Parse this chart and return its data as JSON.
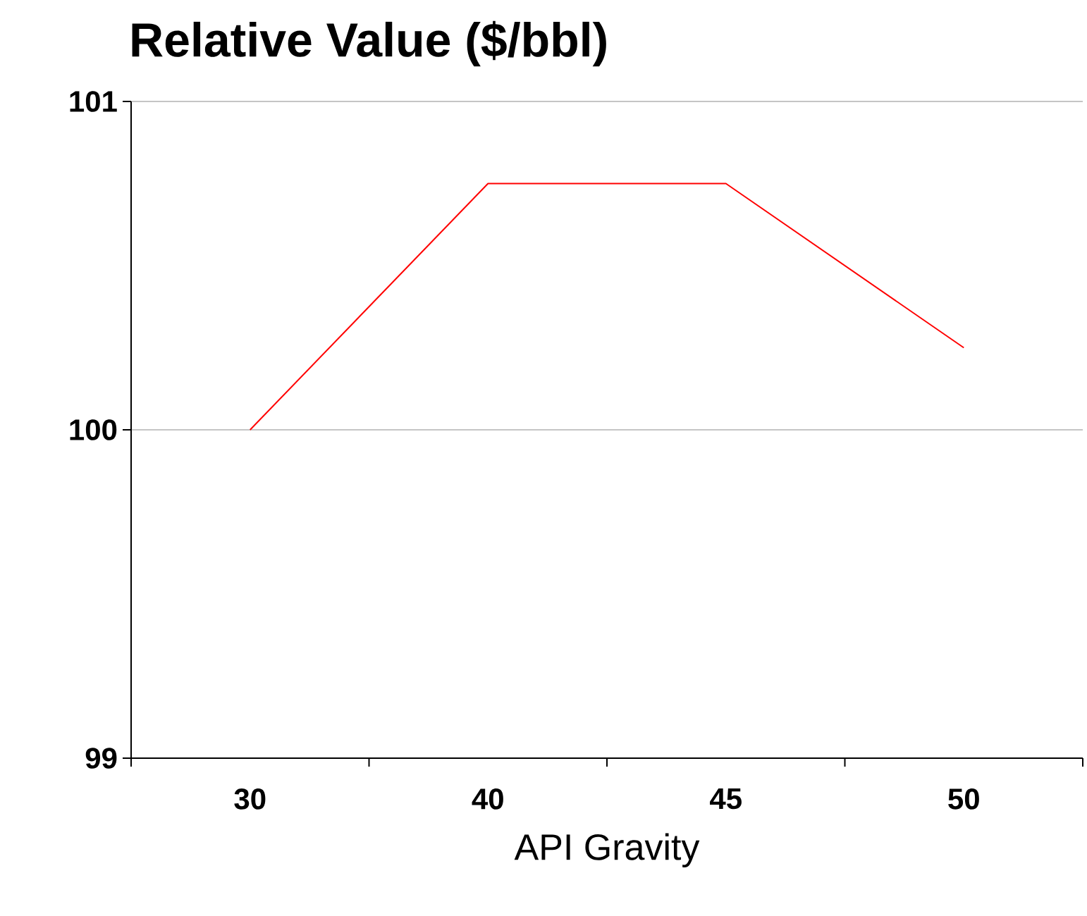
{
  "chart_data": {
    "type": "line",
    "title": "Relative Value ($/bbl)",
    "xlabel": "API Gravity",
    "categories": [
      "30",
      "40",
      "45",
      "50"
    ],
    "series": [
      {
        "color": "#ff0000",
        "values": [
          100,
          100.75,
          100.75,
          100.25
        ]
      }
    ],
    "ylim": [
      99,
      101
    ],
    "yticks": [
      99,
      100,
      101
    ],
    "grid": "y"
  }
}
